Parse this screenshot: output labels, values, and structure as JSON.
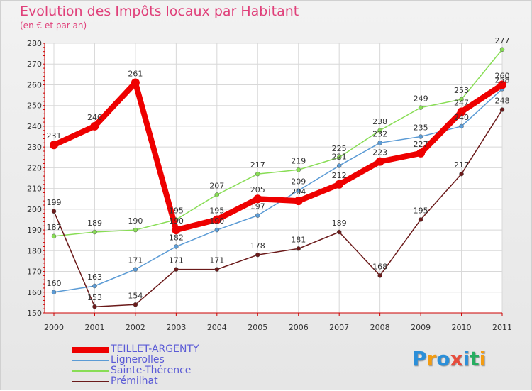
{
  "chart_data": {
    "type": "line",
    "title": "Evolution des Impôts locaux par Habitant",
    "subtitle": "(en € et par an)",
    "categories": [
      "2000",
      "2001",
      "2002",
      "2003",
      "2004",
      "2005",
      "2006",
      "2007",
      "2008",
      "2009",
      "2010",
      "2011"
    ],
    "ylim": [
      150,
      280
    ],
    "yticks": [
      "150",
      "160",
      "170",
      "180",
      "190",
      "200",
      "210",
      "220",
      "230",
      "240",
      "250",
      "260",
      "270",
      "280"
    ],
    "grid": true,
    "legend_position": "bottom-left",
    "series": [
      {
        "name": "TEILLET-ARGENTY",
        "color": "#ee0000",
        "values": [
          231,
          240,
          261,
          190,
          195,
          205,
          204,
          212,
          223,
          227,
          247,
          260
        ]
      },
      {
        "name": "Lignerolles",
        "color": "#5b9bd5",
        "values": [
          160,
          163,
          171,
          182,
          190,
          197,
          209,
          221,
          232,
          235,
          240,
          258
        ]
      },
      {
        "name": "Sainte-Thérence",
        "color": "#88dd55",
        "values": [
          187,
          189,
          190,
          195,
          207,
          217,
          219,
          225,
          238,
          249,
          253,
          277
        ]
      },
      {
        "name": "Prémilhat",
        "color": "#6b1a1a",
        "values": [
          199,
          153,
          154,
          171,
          171,
          178,
          181,
          189,
          168,
          195,
          217,
          248
        ]
      }
    ]
  },
  "brand": {
    "letters": [
      "P",
      "r",
      "o",
      "x",
      "i",
      "t",
      "i"
    ],
    "colors": [
      "#2b8fd9",
      "#f39c12",
      "#2b8fd9",
      "#e74c3c",
      "#2b8fd9",
      "#27ae60",
      "#f39c12"
    ]
  }
}
